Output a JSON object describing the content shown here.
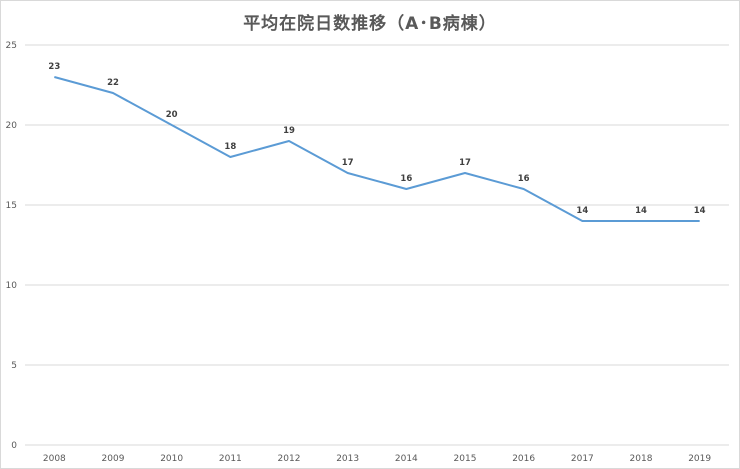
{
  "chart_data": {
    "type": "line",
    "title": "平均在院日数推移（A･B病棟）",
    "categories": [
      "2008",
      "2009",
      "2010",
      "2011",
      "2012",
      "2013",
      "2014",
      "2015",
      "2016",
      "2017",
      "2018",
      "2019"
    ],
    "series": [
      {
        "values": [
          23,
          22,
          20,
          18,
          19,
          17,
          16,
          17,
          16,
          14,
          14,
          14
        ]
      }
    ],
    "ylim": [
      0,
      25
    ],
    "yticks": [
      0,
      5,
      10,
      15,
      20,
      25
    ],
    "grid": true,
    "legend": "none",
    "data_labels": true,
    "colors": {
      "series": "#5b9bd5",
      "grid": "#d9d9d9"
    }
  }
}
